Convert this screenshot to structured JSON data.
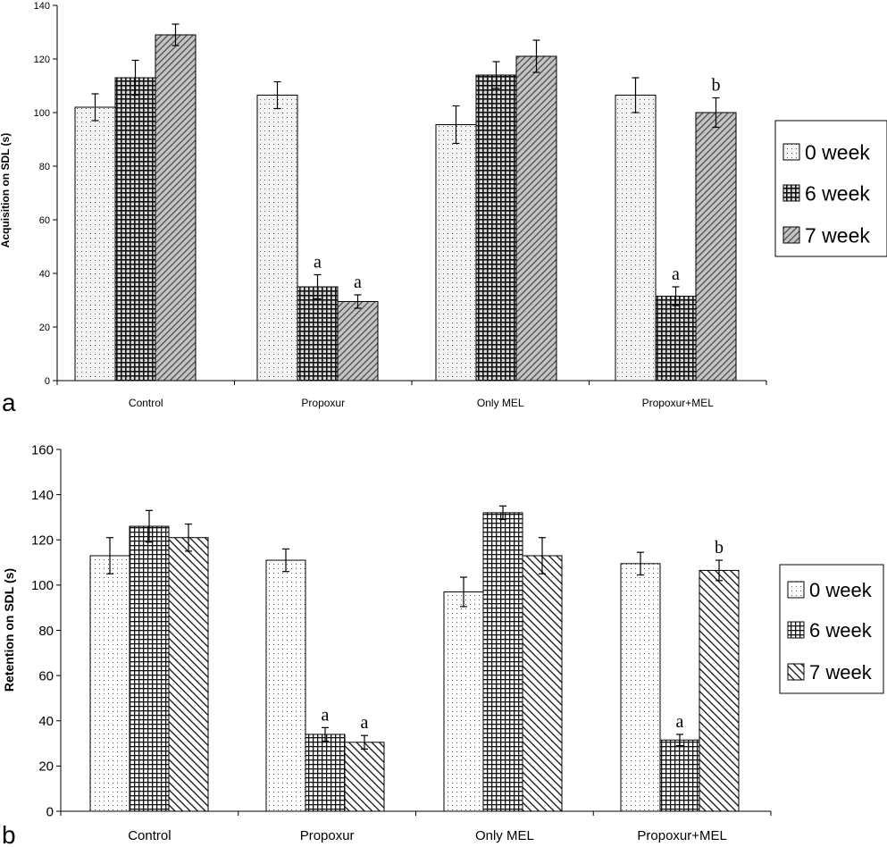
{
  "chart_data": [
    {
      "type": "bar",
      "panel_label": "a",
      "title": "",
      "xlabel": "",
      "ylabel": "Acquisition on SDL (s)",
      "ylim": [
        0,
        140
      ],
      "yticks": [
        0,
        20,
        40,
        60,
        80,
        100,
        120,
        140
      ],
      "grid": false,
      "legend_position": "right",
      "categories": [
        "Control",
        "Propoxur",
        "Only MEL",
        "Propoxur+MEL"
      ],
      "series": [
        {
          "name": "0 week",
          "values": [
            102,
            106.5,
            95.5,
            106.5
          ],
          "errors": [
            5,
            5,
            7,
            6.5
          ],
          "fill": "dots",
          "color": "#f2f2f2"
        },
        {
          "name": "6 week",
          "values": [
            113,
            35,
            114,
            31.5
          ],
          "errors": [
            6.5,
            4.5,
            5,
            3.5
          ],
          "fill": "grid",
          "color": "#000000"
        },
        {
          "name": "7 week",
          "values": [
            129,
            29.5,
            121,
            100
          ],
          "errors": [
            4,
            2.5,
            6,
            5.5
          ],
          "fill": "diagonal",
          "color": "#bdbdbd"
        }
      ],
      "annotations": [
        {
          "category": "Propoxur",
          "series": "6 week",
          "text": "a"
        },
        {
          "category": "Propoxur",
          "series": "7 week",
          "text": "a"
        },
        {
          "category": "Propoxur+MEL",
          "series": "6 week",
          "text": "a"
        },
        {
          "category": "Propoxur+MEL",
          "series": "7 week",
          "text": "b"
        }
      ]
    },
    {
      "type": "bar",
      "panel_label": "b",
      "title": "",
      "xlabel": "",
      "ylabel": "Retention on SDL (s)",
      "ylim": [
        0,
        160
      ],
      "yticks": [
        0,
        20,
        40,
        60,
        80,
        100,
        120,
        140,
        160
      ],
      "grid": false,
      "legend_position": "right",
      "categories": [
        "Control",
        "Propoxur",
        "Only MEL",
        "Propoxur+MEL"
      ],
      "series": [
        {
          "name": "0 week",
          "values": [
            113,
            111,
            97,
            109.5
          ],
          "errors": [
            8,
            5,
            6.5,
            5
          ],
          "fill": "dots",
          "color": "#ffffff"
        },
        {
          "name": "6 week",
          "values": [
            126,
            34,
            132,
            31.5
          ],
          "errors": [
            7,
            3,
            3,
            2.5
          ],
          "fill": "grid",
          "color": "#000000"
        },
        {
          "name": "7 week",
          "values": [
            121,
            30.5,
            113,
            106.5
          ],
          "errors": [
            6,
            3,
            8,
            4.5
          ],
          "fill": "diagonal",
          "color": "#000000"
        }
      ],
      "annotations": [
        {
          "category": "Propoxur",
          "series": "6 week",
          "text": "a"
        },
        {
          "category": "Propoxur",
          "series": "7 week",
          "text": "a"
        },
        {
          "category": "Propoxur+MEL",
          "series": "6 week",
          "text": "a"
        },
        {
          "category": "Propoxur+MEL",
          "series": "7 week",
          "text": "b"
        }
      ]
    }
  ]
}
